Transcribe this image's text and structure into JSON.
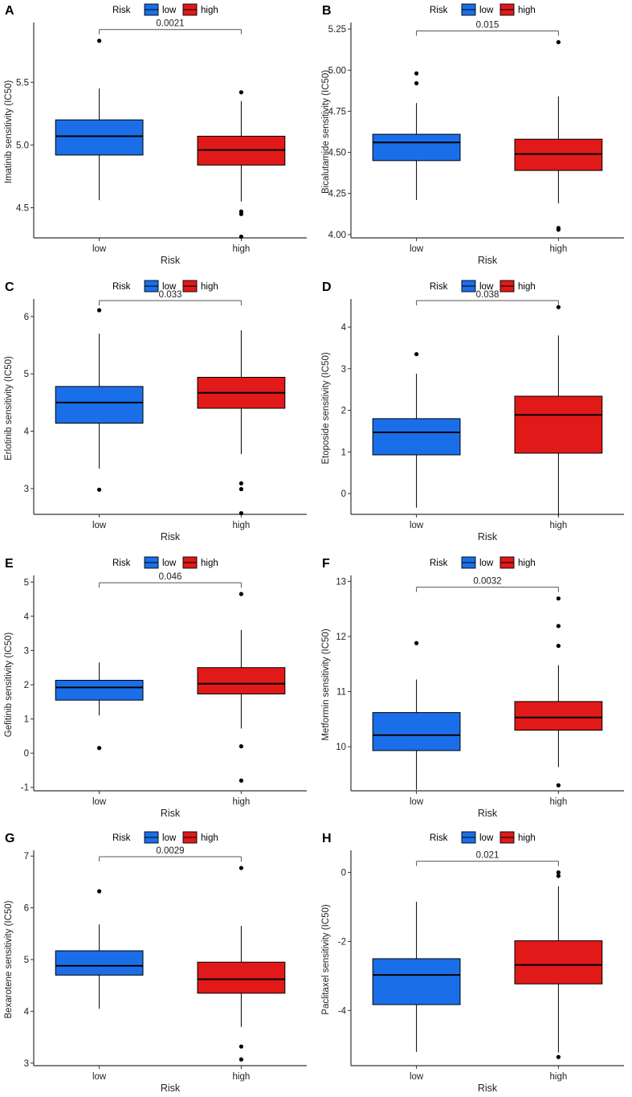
{
  "chart_data": [
    {
      "panel": "A",
      "type": "box",
      "legend": {
        "title": "Risk",
        "entries": [
          "low",
          "high"
        ]
      },
      "categories": [
        "low",
        "high"
      ],
      "xlabel": "Risk",
      "ylabel": "Imatinib sensitivity (IC50)",
      "ylim": [
        4.26,
        5.95
      ],
      "yticks": [
        {
          "v": 4.5,
          "label": "4.5"
        },
        {
          "v": 5.0,
          "label": "5.0"
        },
        {
          "v": 5.5,
          "label": "5.5"
        }
      ],
      "pvalue": "0.0021",
      "boxes": [
        {
          "name": "low",
          "whisker_low": 4.56,
          "q1": 4.92,
          "median": 5.07,
          "q3": 5.2,
          "whisker_high": 5.45,
          "outliers": [
            5.83
          ]
        },
        {
          "name": "high",
          "whisker_low": 4.55,
          "q1": 4.84,
          "median": 4.96,
          "q3": 5.07,
          "whisker_high": 5.35,
          "outliers": [
            5.42,
            4.47,
            4.45,
            4.27
          ]
        }
      ]
    },
    {
      "panel": "B",
      "type": "box",
      "legend": {
        "title": "Risk",
        "entries": [
          "low",
          "high"
        ]
      },
      "categories": [
        "low",
        "high"
      ],
      "xlabel": "Risk",
      "ylabel": "Bicalutamide sensitivity (IC50)",
      "ylim": [
        3.98,
        5.27
      ],
      "yticks": [
        {
          "v": 4.0,
          "label": "4.00"
        },
        {
          "v": 4.25,
          "label": "4.25"
        },
        {
          "v": 4.5,
          "label": "4.50"
        },
        {
          "v": 4.75,
          "label": "4.75"
        },
        {
          "v": 5.0,
          "label": "5.00"
        },
        {
          "v": 5.25,
          "label": "5.25"
        }
      ],
      "pvalue": "0.015",
      "boxes": [
        {
          "name": "low",
          "whisker_low": 4.21,
          "q1": 4.45,
          "median": 4.56,
          "q3": 4.61,
          "whisker_high": 4.8,
          "outliers": [
            4.98,
            4.92
          ]
        },
        {
          "name": "high",
          "whisker_low": 4.19,
          "q1": 4.39,
          "median": 4.49,
          "q3": 4.58,
          "whisker_high": 4.84,
          "outliers": [
            5.17,
            4.04,
            4.03
          ]
        }
      ]
    },
    {
      "panel": "C",
      "type": "box",
      "legend": {
        "title": "Risk",
        "entries": [
          "low",
          "high"
        ]
      },
      "categories": [
        "low",
        "high"
      ],
      "xlabel": "Risk",
      "ylabel": "Erlotinib sensitivity (IC50)",
      "ylim": [
        2.55,
        6.25
      ],
      "yticks": [
        {
          "v": 3,
          "label": "3"
        },
        {
          "v": 4,
          "label": "4"
        },
        {
          "v": 5,
          "label": "5"
        },
        {
          "v": 6,
          "label": "6"
        }
      ],
      "pvalue": "0.033",
      "boxes": [
        {
          "name": "low",
          "whisker_low": 3.35,
          "q1": 4.14,
          "median": 4.5,
          "q3": 4.78,
          "whisker_high": 5.7,
          "outliers": [
            6.11,
            2.98
          ]
        },
        {
          "name": "high",
          "whisker_low": 3.6,
          "q1": 4.4,
          "median": 4.67,
          "q3": 4.94,
          "whisker_high": 5.76,
          "outliers": [
            3.09,
            2.99,
            2.57
          ]
        }
      ]
    },
    {
      "panel": "D",
      "type": "box",
      "legend": {
        "title": "Risk",
        "entries": [
          "low",
          "high"
        ]
      },
      "categories": [
        "low",
        "high"
      ],
      "xlabel": "Risk",
      "ylabel": "Etoposide sensitivity (IC50)",
      "ylim": [
        -0.5,
        4.6
      ],
      "yticks": [
        {
          "v": 0,
          "label": "0"
        },
        {
          "v": 1,
          "label": "1"
        },
        {
          "v": 2,
          "label": "2"
        },
        {
          "v": 3,
          "label": "3"
        },
        {
          "v": 4,
          "label": "4"
        }
      ],
      "pvalue": "0.038",
      "boxes": [
        {
          "name": "low",
          "whisker_low": -0.34,
          "q1": 0.93,
          "median": 1.47,
          "q3": 1.8,
          "whisker_high": 2.88,
          "outliers": [
            3.35
          ]
        },
        {
          "name": "high",
          "whisker_low": -0.53,
          "q1": 0.97,
          "median": 1.89,
          "q3": 2.34,
          "whisker_high": 3.8,
          "outliers": [
            4.48
          ]
        }
      ]
    },
    {
      "panel": "E",
      "type": "box",
      "legend": {
        "title": "Risk",
        "entries": [
          "low",
          "high"
        ]
      },
      "categories": [
        "low",
        "high"
      ],
      "xlabel": "Risk",
      "ylabel": "Gefitinib sensitivity (IC50)",
      "ylim": [
        -1.1,
        5.1
      ],
      "yticks": [
        {
          "v": -1,
          "label": "-1"
        },
        {
          "v": 0,
          "label": "0"
        },
        {
          "v": 1,
          "label": "1"
        },
        {
          "v": 2,
          "label": "2"
        },
        {
          "v": 3,
          "label": "3"
        },
        {
          "v": 4,
          "label": "4"
        },
        {
          "v": 5,
          "label": "5"
        }
      ],
      "pvalue": "0.046",
      "boxes": [
        {
          "name": "low",
          "whisker_low": 1.1,
          "q1": 1.55,
          "median": 1.92,
          "q3": 2.13,
          "whisker_high": 2.65,
          "outliers": [
            0.15
          ]
        },
        {
          "name": "high",
          "whisker_low": 0.72,
          "q1": 1.73,
          "median": 2.03,
          "q3": 2.5,
          "whisker_high": 3.6,
          "outliers": [
            4.65,
            0.2,
            -0.8
          ]
        }
      ]
    },
    {
      "panel": "F",
      "type": "box",
      "legend": {
        "title": "Risk",
        "entries": [
          "low",
          "high"
        ]
      },
      "categories": [
        "low",
        "high"
      ],
      "xlabel": "Risk",
      "ylabel": "Metformin sensitivity (IC50)",
      "ylim": [
        9.2,
        13.05
      ],
      "yticks": [
        {
          "v": 10,
          "label": "10"
        },
        {
          "v": 11,
          "label": "11"
        },
        {
          "v": 12,
          "label": "12"
        },
        {
          "v": 13,
          "label": "13"
        }
      ],
      "pvalue": "0.0032",
      "boxes": [
        {
          "name": "low",
          "whisker_low": 9.22,
          "q1": 9.93,
          "median": 10.21,
          "q3": 10.62,
          "whisker_high": 11.22,
          "outliers": [
            11.88
          ]
        },
        {
          "name": "high",
          "whisker_low": 9.63,
          "q1": 10.3,
          "median": 10.53,
          "q3": 10.82,
          "whisker_high": 11.48,
          "outliers": [
            12.69,
            12.19,
            11.83,
            9.3
          ]
        }
      ]
    },
    {
      "panel": "G",
      "type": "box",
      "legend": {
        "title": "Risk",
        "entries": [
          "low",
          "high"
        ]
      },
      "categories": [
        "low",
        "high"
      ],
      "xlabel": "Risk",
      "ylabel": "Bexarotene sensitivity (IC50)",
      "ylim": [
        2.95,
        7.05
      ],
      "yticks": [
        {
          "v": 3,
          "label": "3"
        },
        {
          "v": 4,
          "label": "4"
        },
        {
          "v": 5,
          "label": "5"
        },
        {
          "v": 6,
          "label": "6"
        },
        {
          "v": 7,
          "label": "7"
        }
      ],
      "pvalue": "0.0029",
      "boxes": [
        {
          "name": "low",
          "whisker_low": 4.05,
          "q1": 4.7,
          "median": 4.88,
          "q3": 5.17,
          "whisker_high": 5.68,
          "outliers": [
            6.32
          ]
        },
        {
          "name": "high",
          "whisker_low": 3.7,
          "q1": 4.35,
          "median": 4.62,
          "q3": 4.95,
          "whisker_high": 5.65,
          "outliers": [
            6.77,
            3.32,
            3.07
          ]
        }
      ]
    },
    {
      "panel": "H",
      "type": "box",
      "legend": {
        "title": "Risk",
        "entries": [
          "low",
          "high"
        ]
      },
      "categories": [
        "low",
        "high"
      ],
      "xlabel": "Risk",
      "ylabel": "Paclitaxel sensitivity (IC50)",
      "ylim": [
        -5.6,
        0.55
      ],
      "yticks": [
        {
          "v": -4,
          "label": "-4"
        },
        {
          "v": -2,
          "label": "-2"
        },
        {
          "v": 0,
          "label": "0"
        }
      ],
      "pvalue": "0.021",
      "boxes": [
        {
          "name": "low",
          "whisker_low": -5.2,
          "q1": -3.83,
          "median": -2.97,
          "q3": -2.5,
          "whisker_high": -0.85,
          "outliers": []
        },
        {
          "name": "high",
          "whisker_low": -5.22,
          "q1": -3.23,
          "median": -2.68,
          "q3": -1.98,
          "whisker_high": -0.4,
          "outliers": [
            0.0,
            -0.1,
            -5.35
          ]
        }
      ]
    }
  ],
  "colors": {
    "low": "#1a6fe8",
    "high": "#e11919",
    "axis": "#333333"
  }
}
